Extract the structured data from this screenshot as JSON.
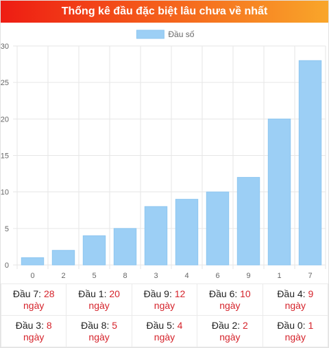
{
  "header": {
    "title": "Thống kê đầu đặc biệt lâu chưa về nhất"
  },
  "colors": {
    "bar_fill": "#9ccff5",
    "bar_stroke": "#8ec6f0",
    "grid": "#e6e6e6",
    "accent": "#d5232b"
  },
  "chart_data": {
    "type": "bar",
    "categories": [
      "0",
      "2",
      "5",
      "8",
      "3",
      "4",
      "6",
      "9",
      "1",
      "7"
    ],
    "series": [
      {
        "name": "Đầu số",
        "values": [
          1,
          2,
          4,
          5,
          8,
          9,
          10,
          12,
          20,
          28
        ]
      }
    ],
    "yticks": [
      "0",
      "5",
      "10",
      "15",
      "20",
      "25",
      "30"
    ],
    "ylim": [
      0,
      30
    ],
    "grid": true,
    "legend": "top-center"
  },
  "stats": {
    "rows": [
      [
        {
          "label": "Đầu 7: ",
          "value": "28",
          "unit": "ngày"
        },
        {
          "label": "Đầu 1: ",
          "value": "20",
          "unit": "ngày"
        },
        {
          "label": "Đầu 9: ",
          "value": "12",
          "unit": "ngày"
        },
        {
          "label": "Đầu 6: ",
          "value": "10",
          "unit": "ngày"
        },
        {
          "label": "Đầu 4: ",
          "value": "9",
          "unit": "ngày"
        }
      ],
      [
        {
          "label": "Đầu 3: ",
          "value": "8",
          "unit": "ngày"
        },
        {
          "label": "Đầu 8: ",
          "value": "5",
          "unit": "ngày"
        },
        {
          "label": "Đầu 5: ",
          "value": "4",
          "unit": "ngày"
        },
        {
          "label": "Đầu 2: ",
          "value": "2",
          "unit": "ngày"
        },
        {
          "label": "Đầu 0: ",
          "value": "1",
          "unit": "ngày"
        }
      ]
    ]
  }
}
